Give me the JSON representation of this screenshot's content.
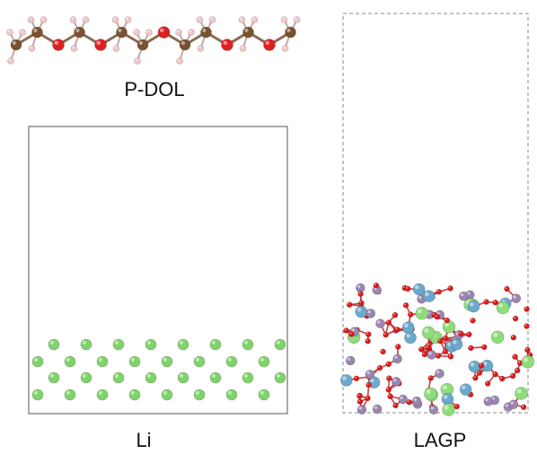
{
  "panels": [
    {
      "label": "P-DOL"
    },
    {
      "label": "Li"
    },
    {
      "label": "LAGP"
    }
  ]
}
